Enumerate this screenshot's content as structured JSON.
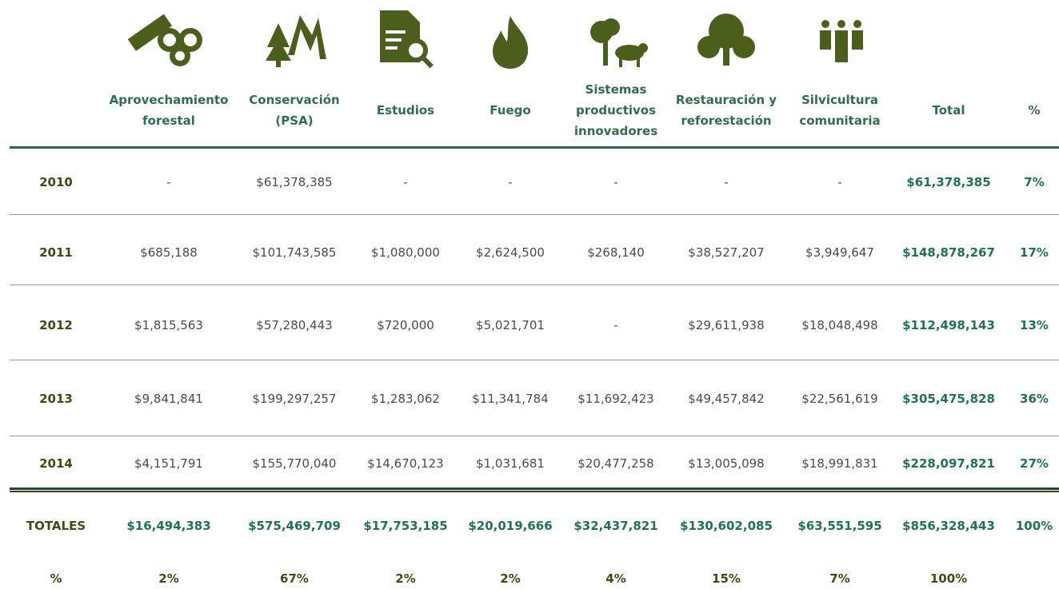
{
  "table": {
    "header": [
      "Aprovechamiento\nforestal",
      "Conservación\n(PSA)",
      "Estudios",
      "Fuego",
      "Sistemas\nproductivos\ninnovadores",
      "Restauración y\nreforestación",
      "Silvicultura\ncomunitaria",
      "Total",
      "%"
    ],
    "rows": [
      [
        "2010",
        "-",
        "$61,378,385",
        "-",
        "-",
        "-",
        "-",
        "-",
        "$61,378,385",
        "7%"
      ],
      [
        "2011",
        "$685,188",
        "$101,743,585",
        "$1,080,000",
        "$2,624,500",
        "$268,140",
        "$38,527,207",
        "$3,949,647",
        "$148,878,267",
        "17%"
      ],
      [
        "2012",
        "$1,815,563",
        "$57,280,443",
        "$720,000",
        "$5,021,701",
        "-",
        "$29,611,938",
        "$18,048,498",
        "$112,498,143",
        "13%"
      ],
      [
        "2013",
        "$9,841,841",
        "$199,297,257",
        "$1,283,062",
        "$11,341,784",
        "$11,692,423",
        "$49,457,842",
        "$22,561,619",
        "$305,475,828",
        "36%"
      ],
      [
        "2014",
        "$4,151,791",
        "$155,770,040",
        "$14,670,123",
        "$1,031,681",
        "$20,477,258",
        "$13,005,098",
        "$18,991,831",
        "$228,097,821",
        "27%"
      ]
    ],
    "totals": [
      "TOTALES",
      "$16,494,383",
      "$575,469,709",
      "$17,753,185",
      "$20,019,666",
      "$32,437,821",
      "$130,602,085",
      "$63,551,595",
      "$856,328,443",
      "100%"
    ],
    "percent_row": [
      "%",
      "2%",
      "67%",
      "2%",
      "2%",
      "4%",
      "15%",
      "7%",
      "100%"
    ]
  }
}
